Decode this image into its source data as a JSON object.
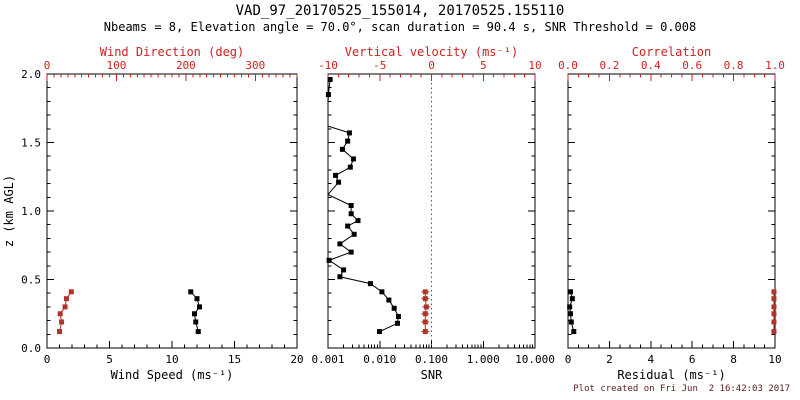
{
  "title": "VAD_97_20170525_155014, 20170525.155110",
  "subtitle": "Nbeams = 8, Elevation angle = 70.0°, scan duration = 90.4 s, SNR Threshold = 0.008",
  "footer": "Plot created on Fri Jun  2 16:42:03 2017",
  "colors": {
    "background": "#ffffff",
    "axis": "#000000",
    "red_axis": "#cc2222",
    "red_series": "#b0342a",
    "black_series": "#000000",
    "footer_text": "#551c1c"
  },
  "y_axis": {
    "label": "z (km AGL)",
    "range": [
      0,
      2
    ],
    "major_ticks": [
      0,
      0.5,
      1,
      1.5,
      2
    ],
    "tick_labels": [
      "0.0",
      "0.5",
      "1.0",
      "1.5",
      "2.0"
    ],
    "minor_step": 0.1
  },
  "chart_data": [
    {
      "type": "line",
      "name": "wind",
      "top_axis": {
        "label": "Wind Direction (deg)",
        "color": "red",
        "scale": "linear",
        "range": [
          0,
          360
        ],
        "major_ticks": [
          0,
          100,
          200,
          300
        ],
        "tick_labels": [
          "0",
          "100",
          "200",
          "300"
        ],
        "minor_step": 10
      },
      "bottom_axis": {
        "label": "Wind Speed (ms⁻¹)",
        "color": "black",
        "scale": "linear",
        "range": [
          0,
          20
        ],
        "major_ticks": [
          0,
          5,
          10,
          15,
          20
        ],
        "tick_labels": [
          "0",
          "5",
          "10",
          "15",
          "20"
        ],
        "minor_step": 1
      },
      "series": [
        {
          "name": "wind-speed",
          "axis": "bottom",
          "color": "black",
          "z": [
            0.12,
            0.19,
            0.25,
            0.3,
            0.36,
            0.41
          ],
          "values": [
            12.1,
            11.9,
            11.8,
            12.2,
            12.0,
            11.5
          ]
        },
        {
          "name": "wind-direction",
          "axis": "top",
          "color": "red",
          "z": [
            0.12,
            0.19,
            0.25,
            0.3,
            0.36,
            0.41
          ],
          "values": [
            18,
            21,
            19,
            26,
            28,
            35
          ]
        }
      ],
      "reference_lines": []
    },
    {
      "type": "line",
      "name": "snr",
      "top_axis": {
        "label": "Vertical velocity (ms⁻¹)",
        "color": "red",
        "scale": "linear",
        "range": [
          -10,
          10
        ],
        "major_ticks": [
          -10,
          -5,
          0,
          5,
          10
        ],
        "tick_labels": [
          "-10",
          "-5",
          "0",
          "5",
          "10"
        ],
        "minor_step": 1
      },
      "bottom_axis": {
        "label": "SNR",
        "color": "black",
        "scale": "log",
        "range": [
          0.001,
          10
        ],
        "major_ticks": [
          0.001,
          0.01,
          0.1,
          1,
          10
        ],
        "tick_labels": [
          "0.001",
          "0.010",
          "0.100",
          "1.000",
          "10.000"
        ]
      },
      "series": [
        {
          "name": "snr-profile",
          "axis": "bottom",
          "color": "black",
          "z": [
            0.12,
            0.18,
            0.23,
            0.29,
            0.35,
            0.41,
            0.47,
            0.52,
            0.57,
            0.64,
            0.7,
            0.76,
            0.83,
            0.89,
            0.93,
            0.98,
            1.04,
            1.12,
            1.21,
            1.26,
            1.32,
            1.38,
            1.45,
            1.51,
            1.57,
            1.62,
            1.68,
            1.73,
            1.79,
            1.85,
            1.96
          ],
          "values": [
            0.0099,
            0.022,
            0.023,
            0.019,
            0.015,
            0.011,
            0.0066,
            0.0017,
            0.002,
            0.00105,
            0.0028,
            0.0017,
            0.0032,
            0.0024,
            0.0038,
            0.0028,
            0.0028,
            0.001,
            0.0016,
            0.0014,
            0.0027,
            0.0031,
            0.0019,
            0.0024,
            0.0026,
            0.001,
            0.001,
            0.001,
            0.001,
            0.00102,
            0.0011
          ]
        },
        {
          "name": "vertical-velocity",
          "axis": "top",
          "color": "red",
          "caps": true,
          "z": [
            0.12,
            0.19,
            0.25,
            0.3,
            0.36,
            0.41
          ],
          "values": [
            -0.6,
            -0.6,
            -0.6,
            -0.5,
            -0.6,
            -0.6
          ]
        }
      ],
      "reference_lines": [
        {
          "name": "zero-vertical-velocity-line",
          "axis": "top",
          "value": 0,
          "color": "red",
          "style": "dotted"
        }
      ]
    },
    {
      "type": "line",
      "name": "residual",
      "top_axis": {
        "label": "Correlation",
        "color": "red",
        "scale": "linear",
        "range": [
          0,
          1
        ],
        "major_ticks": [
          0,
          0.2,
          0.4,
          0.6,
          0.8,
          1
        ],
        "tick_labels": [
          "0.0",
          "0.2",
          "0.4",
          "0.6",
          "0.8",
          "1.0"
        ],
        "minor_step": 0.05
      },
      "bottom_axis": {
        "label": "Residual (ms⁻¹)",
        "color": "black",
        "scale": "linear",
        "range": [
          0,
          10
        ],
        "major_ticks": [
          0,
          2,
          4,
          6,
          8,
          10
        ],
        "tick_labels": [
          "0",
          "2",
          "4",
          "6",
          "8",
          "10"
        ],
        "minor_step": 0.5
      },
      "series": [
        {
          "name": "residual",
          "axis": "bottom",
          "color": "black",
          "z": [
            0.12,
            0.19,
            0.25,
            0.3,
            0.36,
            0.41
          ],
          "values": [
            0.28,
            0.16,
            0.12,
            0.08,
            0.21,
            0.12
          ]
        },
        {
          "name": "correlation",
          "axis": "top",
          "color": "red",
          "z": [
            0.12,
            0.19,
            0.25,
            0.3,
            0.36,
            0.41
          ],
          "values": [
            0.995,
            0.995,
            0.995,
            0.995,
            0.995,
            0.995
          ]
        }
      ],
      "reference_lines": []
    }
  ]
}
